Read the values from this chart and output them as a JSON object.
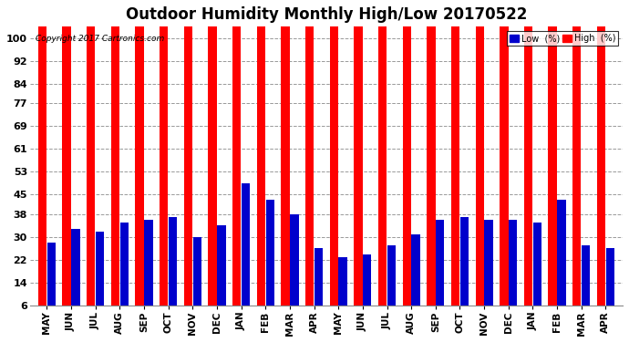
{
  "title": "Outdoor Humidity Monthly High/Low 20170522",
  "copyright_text": "Copyright 2017 Cartronics.com",
  "months": [
    "MAY",
    "JUN",
    "JUL",
    "AUG",
    "SEP",
    "OCT",
    "NOV",
    "DEC",
    "JAN",
    "FEB",
    "MAR",
    "APR",
    "MAY",
    "JUN",
    "JUL",
    "AUG",
    "SEP",
    "OCT",
    "NOV",
    "DEC",
    "JAN",
    "FEB",
    "MAR",
    "APR"
  ],
  "high_values": [
    100,
    100,
    100,
    100,
    100,
    100,
    100,
    100,
    100,
    100,
    100,
    100,
    100,
    100,
    100,
    100,
    100,
    100,
    100,
    100,
    100,
    100,
    100,
    100
  ],
  "low_values": [
    22,
    27,
    26,
    29,
    30,
    31,
    24,
    28,
    43,
    37,
    32,
    20,
    17,
    18,
    21,
    25,
    30,
    31,
    30,
    30,
    29,
    37,
    21,
    20
  ],
  "high_color": "#ff0000",
  "low_color": "#0000cc",
  "background_color": "#ffffff",
  "plot_bg_color": "#ffffff",
  "ylim": [
    6,
    104
  ],
  "yticks": [
    6,
    14,
    22,
    30,
    38,
    45,
    53,
    61,
    69,
    77,
    84,
    92,
    100
  ],
  "ylabel_fontsize": 8,
  "title_fontsize": 12,
  "bar_width": 0.35,
  "grid_color": "#999999",
  "legend_labels": [
    "Low  (%)",
    "High  (%)"
  ],
  "legend_colors": [
    "#0000cc",
    "#ff0000"
  ]
}
